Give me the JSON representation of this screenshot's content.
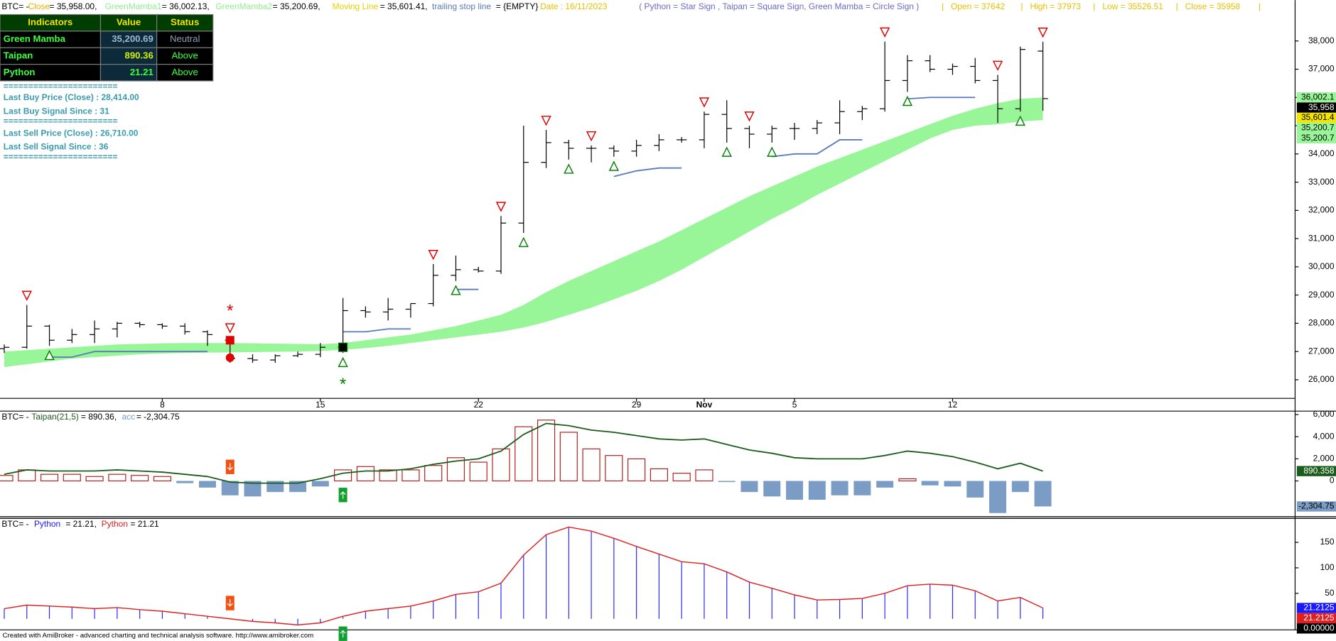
{
  "header": [
    "BTC= -",
    "Close",
    "= 35,958.00,",
    "GreenMamba1",
    "= 36,002.13,",
    "GreenMamba2",
    "= 35,200.69,",
    "Moving Line",
    "= 35,601.41,",
    "trailing stop line",
    "= {EMPTY}",
    "Date : 16/11/2023",
    "( Python = Star Sign , Taipan = Square Sign, Green Mamba = Circle Sign )",
    "|   Open = 37642",
    "|   High = 37973",
    "|   Low = 35526.51",
    "|   Close = 35958",
    "|"
  ],
  "table": {
    "columns": [
      "Indicators",
      "Value",
      "Status"
    ],
    "rows": [
      [
        "Green Mamba",
        "35,200.69",
        "Neutral"
      ],
      [
        "Taipan",
        "890.36",
        "Above"
      ],
      [
        "Python",
        "21.21",
        "Above"
      ]
    ]
  },
  "info": [
    "=======================",
    "Last Buy Price (Close) : 28,414.00",
    "Last Buy Signal Since : 31",
    "=======================",
    "Last Sell Price (Close) : 26,710.00",
    "Last Sell Signal Since : 36",
    "======================="
  ],
  "footer": "Created with AmiBroker - advanced charting and technical analysis software. http://www.amibroker.com",
  "signal_markers": {
    "sell": [
      10
    ],
    "buy": [
      15
    ]
  },
  "chart_data": [
    {
      "type": "ohlc",
      "categories": [
        null,
        null,
        null,
        null,
        null,
        null,
        null,
        "8",
        null,
        null,
        null,
        null,
        null,
        null,
        "15",
        null,
        null,
        null,
        null,
        null,
        null,
        "22",
        null,
        null,
        null,
        null,
        null,
        null,
        "29",
        null,
        null,
        "Nov",
        null,
        null,
        null,
        "5",
        null,
        null,
        null,
        null,
        null,
        null,
        "12",
        null,
        null,
        null,
        null
      ],
      "open": [
        27100,
        27150,
        27900,
        27400,
        27600,
        27800,
        28000,
        27950,
        27900,
        27700,
        27400,
        26750,
        26700,
        26850,
        26900,
        27150,
        28450,
        28400,
        28500,
        28700,
        29700,
        29900,
        29850,
        31550,
        33700,
        34400,
        34200,
        34200,
        34100,
        34300,
        34500,
        34500,
        35400,
        34900,
        34700,
        34900,
        34900,
        35100,
        35500,
        35600,
        36600,
        37300,
        37000,
        37100,
        36600,
        35600,
        37642
      ],
      "high": [
        27250,
        28650,
        27950,
        27800,
        28100,
        28050,
        28050,
        28000,
        28000,
        27750,
        27500,
        26900,
        26900,
        27000,
        27300,
        28900,
        28600,
        28900,
        28700,
        30100,
        30400,
        30000,
        31800,
        35000,
        34850,
        34500,
        34300,
        34300,
        34500,
        34700,
        34600,
        35500,
        35900,
        35000,
        35000,
        35100,
        35200,
        35900,
        35700,
        37980,
        37500,
        37500,
        37200,
        37400,
        36800,
        37800,
        37973
      ],
      "low": [
        26950,
        27100,
        27200,
        27300,
        27300,
        27500,
        27850,
        27800,
        27600,
        27200,
        26600,
        26600,
        26600,
        26800,
        26800,
        26950,
        28200,
        28100,
        28200,
        28600,
        29500,
        29800,
        29750,
        31200,
        33500,
        33800,
        33700,
        33900,
        33900,
        34100,
        34400,
        34200,
        34400,
        34200,
        34400,
        34500,
        34700,
        34700,
        35200,
        35500,
        36200,
        36900,
        36800,
        36500,
        35100,
        35500,
        35526.51
      ],
      "close": [
        27150,
        27900,
        27400,
        27600,
        27800,
        28000,
        27950,
        27900,
        27700,
        27600,
        26750,
        26700,
        26850,
        26900,
        27150,
        28450,
        28400,
        28500,
        28700,
        29700,
        29900,
        29850,
        31550,
        33700,
        34400,
        34200,
        34200,
        34100,
        34300,
        34500,
        34500,
        35400,
        34900,
        34700,
        34900,
        34900,
        35100,
        35500,
        35600,
        36600,
        37300,
        37000,
        37100,
        36600,
        35600,
        37700,
        35958
      ],
      "band_upper": [
        27000,
        27050,
        27100,
        27150,
        27200,
        27250,
        27270,
        27290,
        27300,
        27300,
        27300,
        27290,
        27280,
        27270,
        27260,
        27300,
        27400,
        27500,
        27600,
        27750,
        27900,
        28100,
        28300,
        28650,
        29100,
        29500,
        29850,
        30200,
        30550,
        30900,
        31300,
        31700,
        32100,
        32500,
        32850,
        33200,
        33550,
        33850,
        34150,
        34450,
        34750,
        35050,
        35350,
        35600,
        35800,
        35950,
        36002.13
      ],
      "band_lower": [
        26450,
        26550,
        26650,
        26750,
        26800,
        26850,
        26900,
        26930,
        26950,
        26960,
        26970,
        26980,
        26990,
        27000,
        27020,
        27060,
        27120,
        27200,
        27300,
        27400,
        27500,
        27600,
        27700,
        27850,
        28050,
        28300,
        28550,
        28850,
        29150,
        29500,
        29900,
        30350,
        30800,
        31250,
        31700,
        32100,
        32550,
        32950,
        33350,
        33750,
        34150,
        34550,
        34850,
        35000,
        35050,
        35150,
        35200.69
      ],
      "band_color": "#98f598",
      "trailing_stop": [
        null,
        null,
        26800,
        26800,
        27000,
        27000,
        27000,
        27000,
        27000,
        27000,
        null,
        null,
        null,
        null,
        null,
        27700,
        27700,
        27800,
        27800,
        null,
        29200,
        29200,
        null,
        null,
        null,
        null,
        null,
        33200,
        33400,
        33500,
        33500,
        null,
        null,
        null,
        33900,
        34000,
        34000,
        34500,
        34500,
        null,
        35950,
        36000,
        36000,
        36000,
        null,
        null,
        null
      ],
      "trailing_color": "#5a7ab8",
      "buy_signals": [
        2,
        15,
        20,
        23,
        25,
        27,
        32,
        34,
        40,
        45
      ],
      "sell_signals": [
        1,
        10,
        19,
        22,
        24,
        26,
        31,
        33,
        39,
        44,
        46
      ],
      "ylim": [
        25340,
        39450
      ],
      "yticks": [
        {
          "value": 26000,
          "label": "26,000"
        },
        {
          "value": 27000,
          "label": "27,000"
        },
        {
          "value": 28000,
          "label": "28,000"
        },
        {
          "value": 29000,
          "label": "29,000"
        },
        {
          "value": 30000,
          "label": "30,000"
        },
        {
          "value": 31000,
          "label": "31,000"
        },
        {
          "value": 32000,
          "label": "32,000"
        },
        {
          "value": 33000,
          "label": "33,000"
        },
        {
          "value": 34000,
          "label": "34,000"
        },
        {
          "value": 35000,
          "label": "35,000"
        },
        {
          "value": 36000,
          "label": "36,000"
        },
        {
          "value": 37000,
          "label": "37,000"
        },
        {
          "value": 38000,
          "label": "38,000"
        }
      ],
      "badges": [
        {
          "value": 36002.13,
          "label": "36,002.1",
          "color": "#98f598",
          "text_color": "#000"
        },
        {
          "value": 35958,
          "label": "35,958",
          "color": "#000",
          "text_color": "#fff"
        },
        {
          "value": 35601.41,
          "label": "35,601.4",
          "color": "#f5e600",
          "text_color": "#000"
        },
        {
          "value": 35200.69,
          "label": "35,200.7",
          "color": "#98f598",
          "text_color": "#000"
        },
        {
          "value": 35200.69,
          "label": "35,200.7",
          "color": "#98f598",
          "text_color": "#000"
        }
      ]
    },
    {
      "type": "bar",
      "title": [
        "BTC= -",
        "Taipan(21,5)",
        "= 890.36,",
        "acc",
        "= -2,304.75"
      ],
      "values": [
        500,
        1000,
        600,
        600,
        400,
        600,
        500,
        400,
        -200,
        -600,
        -1300,
        -1400,
        -1000,
        -1000,
        -500,
        1000,
        1300,
        1000,
        1000,
        1400,
        2100,
        1700,
        2900,
        4900,
        5500,
        4400,
        2900,
        2300,
        2000,
        1100,
        700,
        1000,
        -100,
        -1000,
        -1400,
        -1700,
        -1700,
        -1300,
        -1300,
        -600,
        200,
        -400,
        -500,
        -1500,
        -2900,
        -1000,
        -2304.75
      ],
      "positive_color": "#b22222",
      "negative_color": "#7b9cc4",
      "line": [
        600,
        1000,
        900,
        900,
        900,
        1000,
        900,
        800,
        600,
        400,
        -100,
        -200,
        -200,
        -200,
        200,
        700,
        900,
        900,
        1100,
        1500,
        1800,
        2000,
        2700,
        4200,
        5200,
        5000,
        4600,
        4400,
        4100,
        3800,
        3700,
        3800,
        3300,
        2800,
        2500,
        2100,
        2000,
        2000,
        2000,
        2300,
        2700,
        2500,
        2200,
        1700,
        1100,
        1600,
        890.358
      ],
      "line_color": "#1a5c1a",
      "ylim": [
        -3230,
        6310
      ],
      "yticks": [
        {
          "value": 6000,
          "label": "6,000"
        },
        {
          "value": 4000,
          "label": "4,000"
        },
        {
          "value": 2000,
          "label": "2,000"
        },
        0
      ],
      "badges": [
        {
          "value": 890.358,
          "label": "890.358",
          "color": "#1a5c1a",
          "text_color": "#fff"
        },
        {
          "value": -2304.75,
          "label": "-2,304.75",
          "color": "#7b9cc4",
          "text_color": "#000"
        }
      ]
    },
    {
      "type": "stem",
      "title": [
        "BTC= -",
        "Python",
        "= 21.21,",
        "Python",
        "= 21.21"
      ],
      "values": [
        20,
        27,
        25,
        23,
        20,
        22,
        18,
        15,
        10,
        5,
        0,
        -5,
        -8,
        -12,
        -8,
        5,
        15,
        20,
        25,
        35,
        48,
        53,
        70,
        125,
        165,
        180,
        172,
        158,
        142,
        127,
        112,
        108,
        92,
        72,
        60,
        47,
        37,
        38,
        40,
        50,
        65,
        68,
        66,
        55,
        35,
        42,
        21.2125
      ],
      "stem_color": "#2a2aff",
      "line_color": "#e02020",
      "ylim": [
        -20,
        197
      ],
      "yticks": [
        150,
        100,
        50
      ],
      "badges": [
        {
          "value": 21.2125,
          "label": "21.2125",
          "color": "#1a1aff",
          "text_color": "#fff"
        },
        {
          "value": 21.2125,
          "label": "21.2125",
          "color": "#e02020",
          "text_color": "#fff"
        },
        {
          "value": 0,
          "label": "0.00000",
          "color": "#000",
          "text_color": "#fff"
        }
      ]
    }
  ]
}
